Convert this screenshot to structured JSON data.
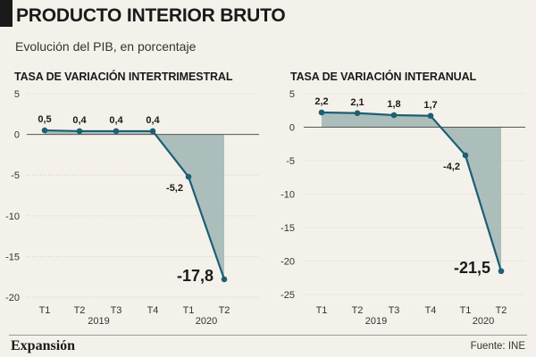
{
  "header": {
    "title": "PRODUCTO INTERIOR BRUTO",
    "subtitle": "Evolución del PIB, en porcentaje"
  },
  "footer": {
    "brand": "Expansión",
    "source": "Fuente: INE"
  },
  "colors": {
    "line": "#1d5f73",
    "area": "#9fb5b4",
    "grid": "#c9c6be",
    "zero": "#555555",
    "text": "#1a1a1a"
  },
  "chart_data": [
    {
      "type": "area",
      "title": "TASA DE VARIACIÓN INTERTRIMESTRAL",
      "categories": [
        "T1",
        "T2",
        "T3",
        "T4",
        "T1",
        "T2"
      ],
      "year_labels": [
        {
          "label": "2019",
          "span": [
            0,
            3
          ]
        },
        {
          "label": "2020",
          "span": [
            4,
            5
          ]
        }
      ],
      "values": [
        0.5,
        0.4,
        0.4,
        0.4,
        -5.2,
        -17.8
      ],
      "value_labels": [
        "0,5",
        "0,4",
        "0,4",
        "0,4",
        "-5,2",
        "-17,8"
      ],
      "highlight_last": true,
      "yticks": [
        5,
        0,
        -5,
        -10,
        -15,
        -20
      ],
      "ytick_labels": [
        "5",
        "0",
        "-5",
        "-10",
        "-15",
        "-20"
      ],
      "ylim": [
        -20,
        5
      ],
      "grid": true
    },
    {
      "type": "area",
      "title": "TASA DE VARIACIÓN INTERANUAL",
      "categories": [
        "T1",
        "T2",
        "T3",
        "T4",
        "T1",
        "T2"
      ],
      "year_labels": [
        {
          "label": "2019",
          "span": [
            0,
            3
          ]
        },
        {
          "label": "2020",
          "span": [
            4,
            5
          ]
        }
      ],
      "values": [
        2.2,
        2.1,
        1.8,
        1.7,
        -4.2,
        -21.5
      ],
      "value_labels": [
        "2,2",
        "2,1",
        "1,8",
        "1,7",
        "-4,2",
        "-21,5"
      ],
      "highlight_last": true,
      "yticks": [
        5,
        0,
        -5,
        -10,
        -15,
        -20,
        -25
      ],
      "ytick_labels": [
        "5",
        "0",
        "-5",
        "-10",
        "-15",
        "-20",
        "-25"
      ],
      "ylim": [
        -25,
        5
      ],
      "grid": true
    }
  ]
}
